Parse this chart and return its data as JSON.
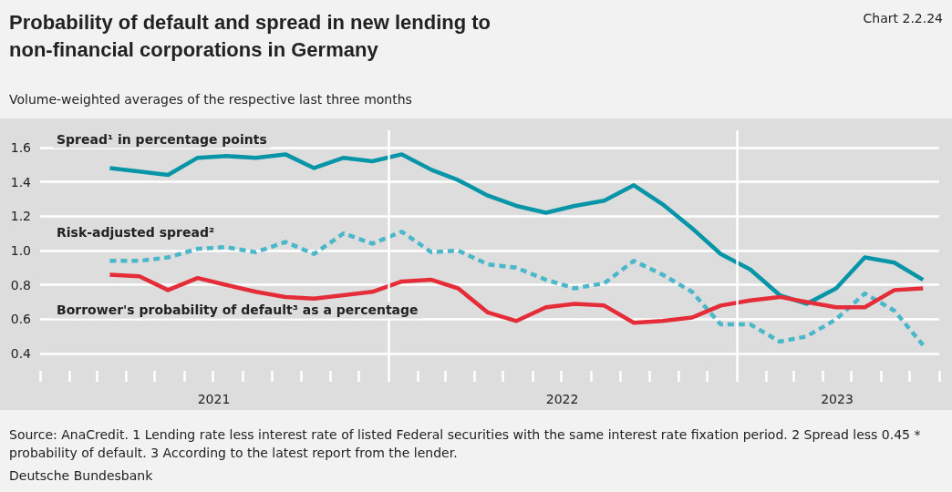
{
  "chart_data": {
    "type": "line",
    "title": "Probability of default and spread in new lending to non-financial corporations in Germany",
    "subtitle": "Volume-weighted averages of the respective last three months",
    "annotations": [
      "Chart 2.2.24",
      "Source: AnaCredit. 1 Lending rate less interest rate of listed Federal securities with the same interest rate fixation period. 2 Spread less 0.45 * probability of default. 3 According to the latest report from the lender.",
      "Deutsche Bundesbank"
    ],
    "x": [
      "2021-03-15",
      "2021-04-15",
      "2021-05-15",
      "2021-06-15",
      "2021-07-15",
      "2021-08-15",
      "2021-09-15",
      "2021-10-15",
      "2021-11-15",
      "2021-12-15",
      "2022-01-15",
      "2022-02-15",
      "2022-03-15",
      "2022-04-15",
      "2022-05-15",
      "2022-06-15",
      "2022-07-15",
      "2022-08-15",
      "2022-09-15",
      "2022-10-15",
      "2022-11-15",
      "2022-12-15",
      "2023-01-15",
      "2023-02-15",
      "2023-03-15",
      "2023-04-15",
      "2023-05-15",
      "2023-06-15",
      "2023-07-15"
    ],
    "series": [
      {
        "name": "Spread¹ in percentage points",
        "color": "#0995a8",
        "line_style": "solid",
        "values": [
          1.48,
          1.46,
          1.44,
          1.54,
          1.55,
          1.54,
          1.56,
          1.48,
          1.54,
          1.52,
          1.56,
          1.47,
          1.41,
          1.32,
          1.26,
          1.22,
          1.26,
          1.29,
          1.38,
          1.27,
          1.13,
          0.98,
          0.89,
          0.74,
          0.69,
          0.78,
          0.96,
          0.93,
          0.83
        ]
      },
      {
        "name": "Risk-adjusted spread²",
        "color": "#4ab8ca",
        "line_style": "dashed",
        "values": [
          0.94,
          0.94,
          0.96,
          1.01,
          1.02,
          0.99,
          1.05,
          0.98,
          1.1,
          1.04,
          1.11,
          0.99,
          1.0,
          0.92,
          0.9,
          0.83,
          0.78,
          0.81,
          0.94,
          0.86,
          0.76,
          0.57,
          0.57,
          0.47,
          0.5,
          0.6,
          0.75,
          0.65,
          0.45
        ]
      },
      {
        "name": "Borrower's probability of default³ as a percentage",
        "color": "#e52d3a",
        "line_style": "solid",
        "values": [
          0.86,
          0.85,
          0.77,
          0.84,
          0.8,
          0.76,
          0.73,
          0.72,
          0.74,
          0.76,
          0.82,
          0.83,
          0.78,
          0.64,
          0.59,
          0.67,
          0.69,
          0.68,
          0.58,
          0.59,
          0.61,
          0.68,
          0.71,
          0.73,
          0.7,
          0.67,
          0.67,
          0.77,
          0.78
        ]
      }
    ],
    "xlim": [
      "2021-01-01",
      "2023-08-01"
    ],
    "xticks": [
      {
        "value": "2021-01-01",
        "label": null
      },
      {
        "value": "2021-02-01",
        "label": null
      },
      {
        "value": "2021-03-01",
        "label": null
      },
      {
        "value": "2021-04-01",
        "label": null
      },
      {
        "value": "2021-05-01",
        "label": null
      },
      {
        "value": "2021-06-01",
        "label": null
      },
      {
        "value": "2021-07-01",
        "label": null
      },
      {
        "value": "2021-08-01",
        "label": null
      },
      {
        "value": "2021-09-01",
        "label": null
      },
      {
        "value": "2021-10-01",
        "label": null
      },
      {
        "value": "2021-11-01",
        "label": null
      },
      {
        "value": "2021-12-01",
        "label": null
      },
      {
        "value": "2022-01-01",
        "label": null
      },
      {
        "value": "2022-02-01",
        "label": null
      },
      {
        "value": "2022-03-01",
        "label": null
      },
      {
        "value": "2022-04-01",
        "label": null
      },
      {
        "value": "2022-05-01",
        "label": null
      },
      {
        "value": "2022-06-01",
        "label": null
      },
      {
        "value": "2022-07-01",
        "label": null
      },
      {
        "value": "2022-08-01",
        "label": null
      },
      {
        "value": "2022-09-01",
        "label": null
      },
      {
        "value": "2022-10-01",
        "label": null
      },
      {
        "value": "2022-11-01",
        "label": null
      },
      {
        "value": "2022-12-01",
        "label": null
      },
      {
        "value": "2023-01-01",
        "label": null
      },
      {
        "value": "2023-02-01",
        "label": null
      },
      {
        "value": "2023-03-01",
        "label": null
      },
      {
        "value": "2023-04-01",
        "label": null
      },
      {
        "value": "2023-05-01",
        "label": null
      },
      {
        "value": "2023-06-01",
        "label": null
      },
      {
        "value": "2023-07-01",
        "label": null
      },
      {
        "value": "2023-08-01",
        "label": null
      },
      {
        "value": "2021-07-02",
        "label": "2021"
      },
      {
        "value": "2022-07-02",
        "label": "2022"
      },
      {
        "value": "2023-04-16",
        "label": "2023"
      }
    ],
    "ylim": [
      0.3,
      1.7
    ],
    "yticks": [
      {
        "value": 0.4,
        "label": "0.4"
      },
      {
        "value": 0.6,
        "label": "0.6"
      },
      {
        "value": 0.8,
        "label": "0.8"
      },
      {
        "value": 1.0,
        "label": "1.0"
      },
      {
        "value": 1.2,
        "label": "1.2"
      },
      {
        "value": 1.4,
        "label": "1.4"
      },
      {
        "value": 1.6,
        "label": "1.6"
      }
    ],
    "ref_lines": [
      {
        "axis": "x",
        "value": "2022-01-01",
        "label": null,
        "color": "#ffffff"
      },
      {
        "axis": "x",
        "value": "2023-01-01",
        "label": null,
        "color": "#ffffff"
      }
    ],
    "grid": "y",
    "legend": false,
    "marker": "none"
  }
}
